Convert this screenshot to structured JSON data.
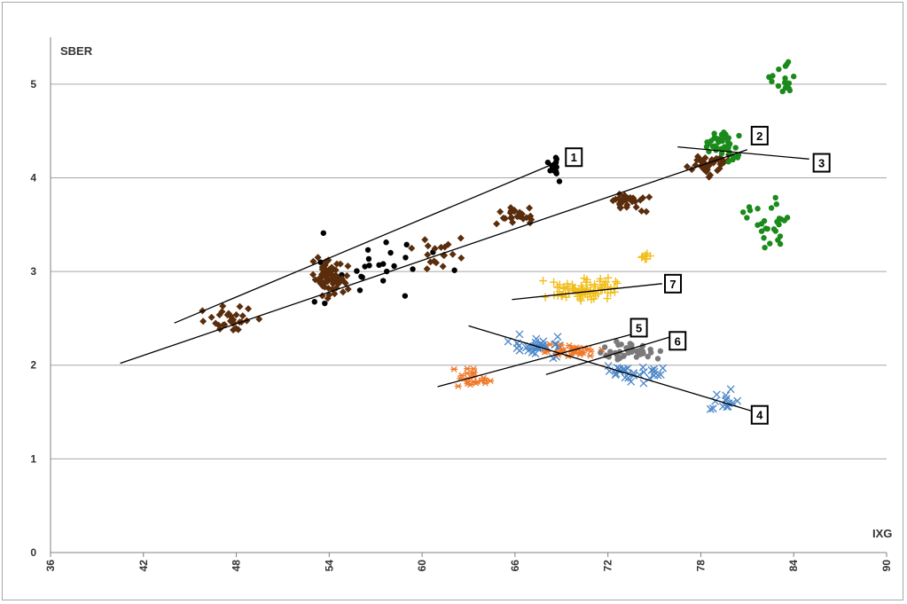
{
  "chart_data": {
    "type": "scatter",
    "title": "",
    "xlabel": "IXG",
    "ylabel": "SBER",
    "xlim": [
      36,
      90
    ],
    "ylim": [
      0,
      5.5
    ],
    "x_ticks": [
      "36",
      "42",
      "48",
      "54",
      "60",
      "66",
      "72",
      "78",
      "84",
      "90"
    ],
    "y_ticks": [
      "0",
      "1",
      "2",
      "3",
      "4",
      "5"
    ],
    "grid": "horizontal",
    "legend": "none",
    "series": [
      {
        "id": "1",
        "color": "#000000",
        "marker": "circle",
        "clusters": [
          {
            "center": [
              57,
              3.0
            ],
            "spread": [
              11,
              0.55
            ],
            "count": 28
          },
          {
            "center": [
              68.5,
              4.1
            ],
            "spread": [
              0.6,
              0.2
            ],
            "count": 16
          }
        ]
      },
      {
        "id": "2",
        "color": "#5a2d0c",
        "marker": "diamond",
        "clusters": [
          {
            "center": [
              47.5,
              2.5
            ],
            "spread": [
              2.2,
              0.18
            ],
            "count": 30
          },
          {
            "center": [
              54,
              2.95
            ],
            "spread": [
              1.6,
              0.25
            ],
            "count": 70
          },
          {
            "center": [
              61,
              3.2
            ],
            "spread": [
              2.2,
              0.25
            ],
            "count": 18
          },
          {
            "center": [
              66,
              3.6
            ],
            "spread": [
              2.0,
              0.15
            ],
            "count": 25
          },
          {
            "center": [
              73.5,
              3.75
            ],
            "spread": [
              2.0,
              0.13
            ],
            "count": 30
          },
          {
            "center": [
              78.5,
              4.15
            ],
            "spread": [
              1.6,
              0.2
            ],
            "count": 40
          }
        ]
      },
      {
        "id": "3",
        "color": "#1a8a1a",
        "marker": "circle",
        "clusters": [
          {
            "center": [
              79.5,
              4.35
            ],
            "spread": [
              1.6,
              0.25
            ],
            "count": 40
          },
          {
            "center": [
              83.2,
              5.05
            ],
            "spread": [
              1.3,
              0.25
            ],
            "count": 18
          },
          {
            "center": [
              82.5,
              3.5
            ],
            "spread": [
              2.2,
              0.4
            ],
            "count": 28
          }
        ]
      },
      {
        "id": "4",
        "color": "#4a86c8",
        "marker": "x",
        "clusters": [
          {
            "center": [
              67.5,
              2.2
            ],
            "spread": [
              2.4,
              0.15
            ],
            "count": 35
          },
          {
            "center": [
              73.5,
              1.9
            ],
            "spread": [
              3.0,
              0.15
            ],
            "count": 30
          },
          {
            "center": [
              79.5,
              1.6
            ],
            "spread": [
              1.8,
              0.2
            ],
            "count": 14
          }
        ]
      },
      {
        "id": "5",
        "color": "#f07828",
        "marker": "asterisk",
        "clusters": [
          {
            "center": [
              63,
              1.85
            ],
            "spread": [
              2.0,
              0.15
            ],
            "count": 22
          },
          {
            "center": [
              69.5,
              2.15
            ],
            "spread": [
              3.0,
              0.1
            ],
            "count": 30
          }
        ]
      },
      {
        "id": "6",
        "color": "#7a7a7a",
        "marker": "circle",
        "clusters": [
          {
            "center": [
              73.5,
              2.15
            ],
            "spread": [
              3.0,
              0.15
            ],
            "count": 40
          }
        ]
      },
      {
        "id": "7",
        "color": "#f2be1a",
        "marker": "plus",
        "clusters": [
          {
            "center": [
              70.5,
              2.8
            ],
            "spread": [
              3.2,
              0.18
            ],
            "count": 80
          },
          {
            "center": [
              74.5,
              3.15
            ],
            "spread": [
              0.8,
              0.06
            ],
            "count": 8
          }
        ]
      }
    ],
    "trendlines": [
      {
        "id": "1",
        "x": [
          44,
          68.5
        ],
        "y": [
          2.45,
          4.15
        ]
      },
      {
        "id": "2",
        "x": [
          40.5,
          81
        ],
        "y": [
          2.02,
          4.3
        ]
      },
      {
        "id": "3",
        "x": [
          76.5,
          85
        ],
        "y": [
          4.33,
          4.2
        ]
      },
      {
        "id": "4",
        "x": [
          63,
          81.5
        ],
        "y": [
          2.42,
          1.5
        ]
      },
      {
        "id": "5",
        "x": [
          61,
          74
        ],
        "y": [
          1.77,
          2.35
        ]
      },
      {
        "id": "6",
        "x": [
          68,
          76
        ],
        "y": [
          1.9,
          2.3
        ]
      },
      {
        "id": "7",
        "x": [
          65.8,
          75.5
        ],
        "y": [
          2.7,
          2.87
        ]
      }
    ],
    "callouts": [
      {
        "label": "1",
        "x": 69.8,
        "y": 4.22
      },
      {
        "label": "2",
        "x": 81.8,
        "y": 4.45
      },
      {
        "label": "3",
        "x": 85.8,
        "y": 4.16
      },
      {
        "label": "4",
        "x": 81.8,
        "y": 1.47
      },
      {
        "label": "5",
        "x": 74,
        "y": 2.4
      },
      {
        "label": "6",
        "x": 76.5,
        "y": 2.26
      },
      {
        "label": "7",
        "x": 76.2,
        "y": 2.87
      }
    ]
  }
}
